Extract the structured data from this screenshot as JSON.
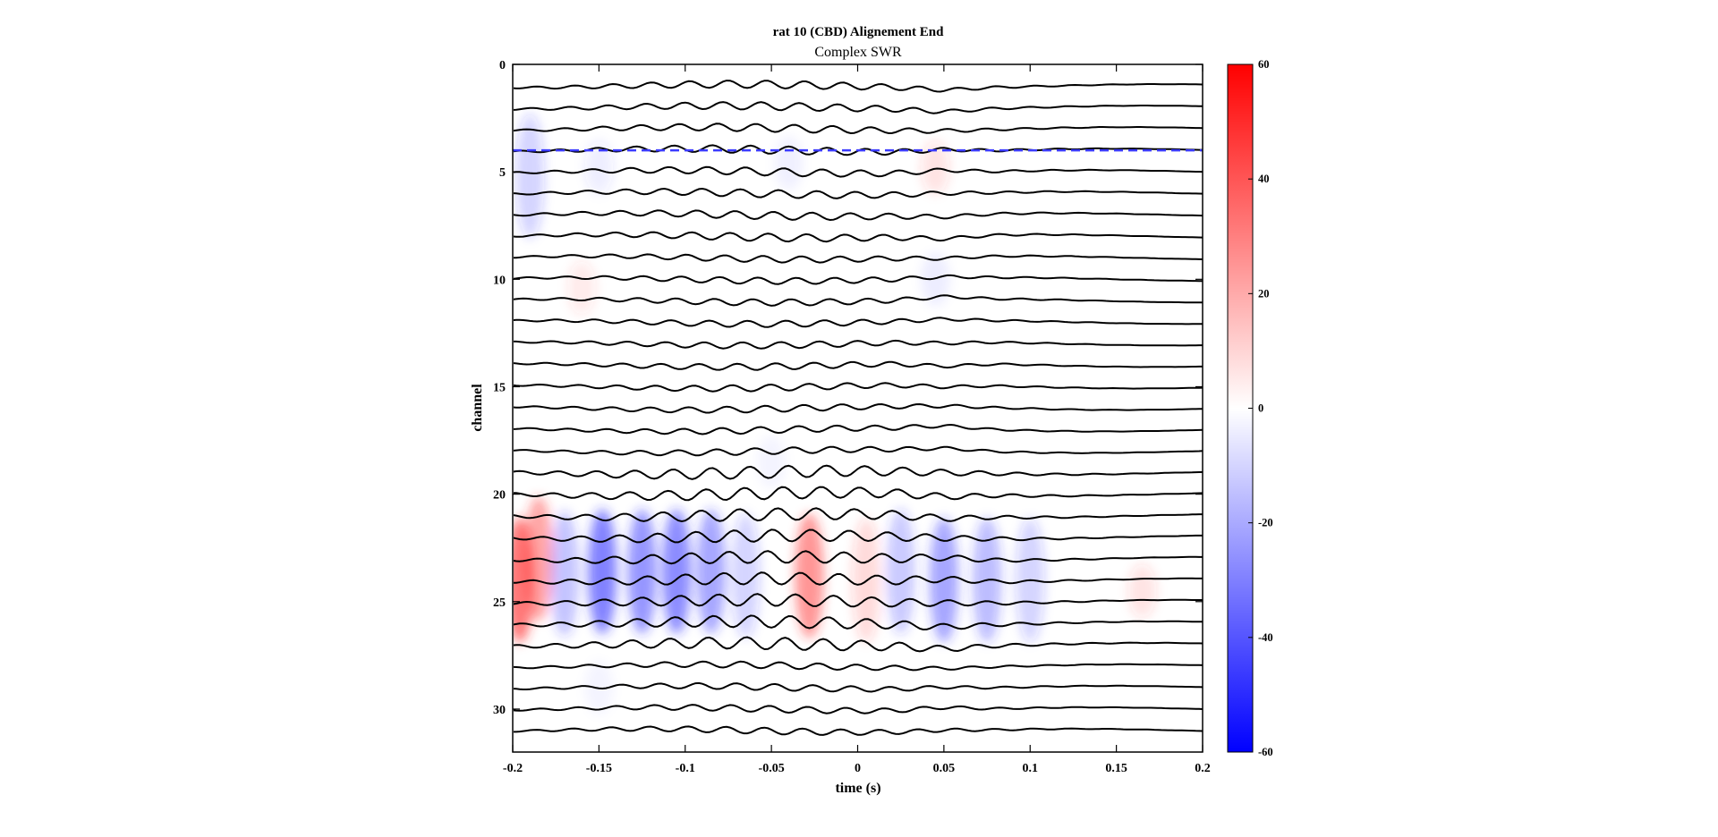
{
  "chart_data": {
    "type": "heatmap",
    "title": "rat 10 (CBD)  Alignement  End",
    "subtitle": "Complex SWR",
    "xlabel": "time (s)",
    "ylabel": "channel",
    "xlim": [
      -0.2,
      0.2
    ],
    "ylim": [
      0,
      32
    ],
    "y_reversed": true,
    "xticks": [
      -0.2,
      -0.15,
      -0.1,
      -0.05,
      0,
      0.05,
      0.1,
      0.15,
      0.2
    ],
    "xtick_labels": [
      "-0.2",
      "-0.15",
      "-0.1",
      "-0.05",
      "0",
      "0.05",
      "0.1",
      "0.15",
      "0.2"
    ],
    "yticks": [
      0,
      5,
      10,
      15,
      20,
      25,
      30
    ],
    "ytick_labels": [
      "0",
      "5",
      "10",
      "15",
      "20",
      "25",
      "30"
    ],
    "colorbar": {
      "range": [
        -60,
        60
      ],
      "ticks": [
        -60,
        -40,
        -20,
        0,
        20,
        40,
        60
      ],
      "tick_labels": [
        "-60",
        "-40",
        "-20",
        "0",
        "20",
        "40",
        "60"
      ],
      "colors": {
        "low": "#0000ff",
        "mid": "#ffffff",
        "high": "#ff0000"
      }
    },
    "reference_line": {
      "channel": 4,
      "style": "dashed",
      "color": "#3b3bff"
    },
    "traces": {
      "channels": [
        1,
        2,
        3,
        4,
        5,
        6,
        7,
        8,
        9,
        10,
        11,
        12,
        13,
        14,
        15,
        16,
        17,
        18,
        19,
        20,
        21,
        22,
        23,
        24,
        25,
        26,
        27,
        28,
        29,
        30,
        31
      ],
      "color": "#000000"
    },
    "csd_blobs": [
      {
        "t": -0.196,
        "ch": 24.0,
        "value": 45
      },
      {
        "t": -0.185,
        "ch": 23.0,
        "value": 30
      },
      {
        "t": -0.17,
        "ch": 23.7,
        "value": -20
      },
      {
        "t": -0.148,
        "ch": 23.6,
        "value": -42
      },
      {
        "t": -0.125,
        "ch": 23.6,
        "value": -35
      },
      {
        "t": -0.105,
        "ch": 23.6,
        "value": -38
      },
      {
        "t": -0.085,
        "ch": 23.6,
        "value": -30
      },
      {
        "t": -0.065,
        "ch": 23.8,
        "value": -14
      },
      {
        "t": -0.028,
        "ch": 23.8,
        "value": 35
      },
      {
        "t": 0.005,
        "ch": 24.0,
        "value": 12
      },
      {
        "t": 0.025,
        "ch": 23.6,
        "value": -18
      },
      {
        "t": 0.05,
        "ch": 24.0,
        "value": -30
      },
      {
        "t": 0.075,
        "ch": 24.0,
        "value": -22
      },
      {
        "t": 0.1,
        "ch": 24.0,
        "value": -14
      },
      {
        "t": 0.165,
        "ch": 24.5,
        "value": 9
      },
      {
        "t": -0.19,
        "ch": 5.2,
        "value": -14
      },
      {
        "t": -0.15,
        "ch": 4.8,
        "value": -6
      },
      {
        "t": -0.04,
        "ch": 4.6,
        "value": -4
      },
      {
        "t": 0.045,
        "ch": 4.8,
        "value": 9
      },
      {
        "t": -0.16,
        "ch": 10.4,
        "value": 7
      },
      {
        "t": 0.045,
        "ch": 10.0,
        "value": -5
      },
      {
        "t": -0.05,
        "ch": 18.5,
        "value": -3
      },
      {
        "t": -0.15,
        "ch": 29.0,
        "value": -3
      }
    ]
  }
}
